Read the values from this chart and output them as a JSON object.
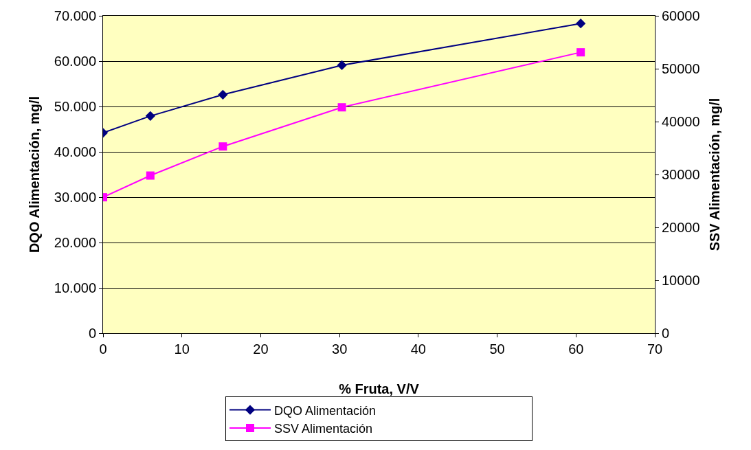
{
  "chart_data": {
    "type": "line",
    "xlabel": "% Fruta, V/V",
    "ylabel": "DQO Alimentación, mg/l",
    "y2label": "SSV Alimentación, mg/l",
    "x": [
      0,
      6.0,
      15.2,
      30.3,
      60.6
    ],
    "series": [
      {
        "name": "DQO Alimentación",
        "color": "#000080",
        "marker": "diamond",
        "values": [
          44200,
          47900,
          52600,
          59100,
          68300
        ]
      },
      {
        "name": "SSV Alimentación",
        "color": "#ff00ff",
        "marker": "square",
        "axis": "y2",
        "values": [
          25700,
          29800,
          35300,
          42700,
          53100
        ]
      }
    ],
    "xlim": [
      0,
      70
    ],
    "xticks": [
      0,
      10,
      20,
      30,
      40,
      50,
      60,
      70
    ],
    "ylim": [
      0,
      70000
    ],
    "yticks": [
      {
        "value": 0,
        "label": "0"
      },
      {
        "value": 10000,
        "label": "10.000"
      },
      {
        "value": 20000,
        "label": "20.000"
      },
      {
        "value": 30000,
        "label": "30.000"
      },
      {
        "value": 40000,
        "label": "40.000"
      },
      {
        "value": 50000,
        "label": "50.000"
      },
      {
        "value": 60000,
        "label": "60.000"
      },
      {
        "value": 70000,
        "label": "70.000"
      }
    ],
    "y2lim": [
      0,
      60000
    ],
    "y2ticks": [
      0,
      10000,
      20000,
      30000,
      40000,
      50000,
      60000
    ],
    "grid": "y",
    "legend": "bottom",
    "line_style": "solid"
  }
}
